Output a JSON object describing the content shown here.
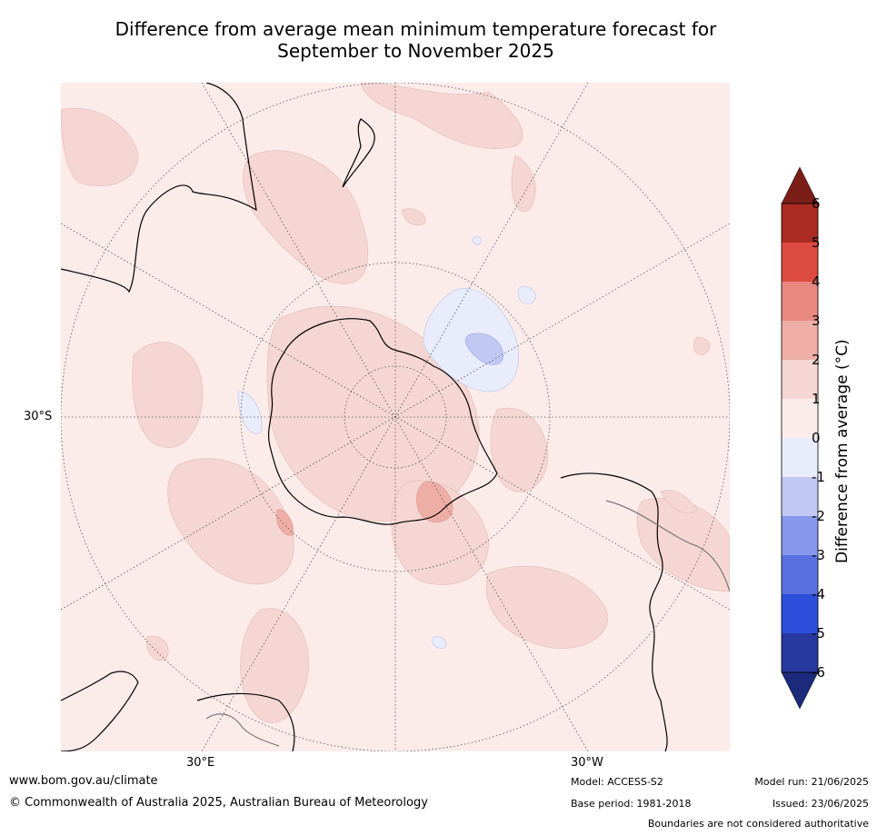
{
  "title_line1": "Difference from average mean minimum temperature forecast for",
  "title_line2": "September to November 2025",
  "map": {
    "projection": "south-polar-stereographic",
    "lat_label": "30°S",
    "lon_label_left": "30°E",
    "lon_label_right": "30°W"
  },
  "colorbar": {
    "label": "Difference from average (°C)",
    "ticks": [
      "6",
      "5",
      "4",
      "3",
      "2",
      "1",
      "0",
      "-1",
      "-2",
      "-3",
      "-4",
      "-5",
      "-6"
    ],
    "colors_top_to_bottom": [
      "#7b1e18",
      "#a92b21",
      "#dd4b40",
      "#e88880",
      "#eeaea6",
      "#f5d6d2",
      "#fbecea",
      "#e9ecfb",
      "#c1c9f2",
      "#8797ec",
      "#5a70e0",
      "#2c4fdc",
      "#27389e",
      "#1c2a7c"
    ],
    "extend": "both"
  },
  "footer": {
    "website": "www.bom.gov.au/climate",
    "copyright": "© Commonwealth of Australia 2025, Australian Bureau of Meteorology",
    "model": "Model: ACCESS-S2",
    "base_period": "Base period: 1981-2018",
    "model_run": "Model run: 21/06/2025",
    "issued": "Issued: 23/06/2025",
    "disclaimer": "Boundaries are not considered authoritative"
  }
}
